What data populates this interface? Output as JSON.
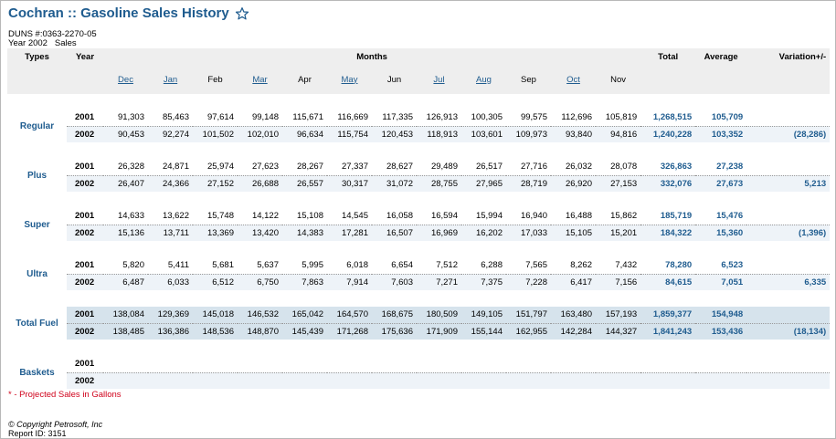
{
  "page": {
    "title": "Cochran :: Gasoline Sales History",
    "duns": "DUNS #:0363-2270-05",
    "year_line": "Year 2002   Sales"
  },
  "table": {
    "headers": {
      "types": "Types",
      "year": "Year",
      "months": "Months",
      "total": "Total",
      "average": "Average",
      "variation": "Variation+/-"
    },
    "months": [
      {
        "label": "Dec",
        "link": true
      },
      {
        "label": "Jan",
        "link": true
      },
      {
        "label": "Feb",
        "link": false
      },
      {
        "label": "Mar",
        "link": true
      },
      {
        "label": "Apr",
        "link": false
      },
      {
        "label": "May",
        "link": true
      },
      {
        "label": "Jun",
        "link": false
      },
      {
        "label": "Jul",
        "link": true
      },
      {
        "label": "Aug",
        "link": true
      },
      {
        "label": "Sep",
        "link": false
      },
      {
        "label": "Oct",
        "link": true
      },
      {
        "label": "Nov",
        "link": false
      }
    ],
    "groups": [
      {
        "type": "Regular",
        "rows": [
          {
            "year": "2001",
            "values": [
              "91,303",
              "85,463",
              "97,614",
              "99,148",
              "115,671",
              "116,669",
              "117,335",
              "126,913",
              "100,305",
              "99,575",
              "112,696",
              "105,819"
            ],
            "total": "1,268,515",
            "average": "105,709",
            "variation": ""
          },
          {
            "year": "2002",
            "values": [
              "90,453",
              "92,274",
              "101,502",
              "102,010",
              "96,634",
              "115,754",
              "120,453",
              "118,913",
              "103,601",
              "109,973",
              "93,840",
              "94,816"
            ],
            "total": "1,240,228",
            "average": "103,352",
            "variation": "(28,286)"
          }
        ]
      },
      {
        "type": "Plus",
        "rows": [
          {
            "year": "2001",
            "values": [
              "26,328",
              "24,871",
              "25,974",
              "27,623",
              "28,267",
              "27,337",
              "28,627",
              "29,489",
              "26,517",
              "27,716",
              "26,032",
              "28,078"
            ],
            "total": "326,863",
            "average": "27,238",
            "variation": ""
          },
          {
            "year": "2002",
            "values": [
              "26,407",
              "24,366",
              "27,152",
              "26,688",
              "26,557",
              "30,317",
              "31,072",
              "28,755",
              "27,965",
              "28,719",
              "26,920",
              "27,153"
            ],
            "total": "332,076",
            "average": "27,673",
            "variation": "5,213"
          }
        ]
      },
      {
        "type": "Super",
        "rows": [
          {
            "year": "2001",
            "values": [
              "14,633",
              "13,622",
              "15,748",
              "14,122",
              "15,108",
              "14,545",
              "16,058",
              "16,594",
              "15,994",
              "16,940",
              "16,488",
              "15,862"
            ],
            "total": "185,719",
            "average": "15,476",
            "variation": ""
          },
          {
            "year": "2002",
            "values": [
              "15,136",
              "13,711",
              "13,369",
              "13,420",
              "14,383",
              "17,281",
              "16,507",
              "16,969",
              "16,202",
              "17,033",
              "15,105",
              "15,201"
            ],
            "total": "184,322",
            "average": "15,360",
            "variation": "(1,396)"
          }
        ]
      },
      {
        "type": "Ultra",
        "rows": [
          {
            "year": "2001",
            "values": [
              "5,820",
              "5,411",
              "5,681",
              "5,637",
              "5,995",
              "6,018",
              "6,654",
              "7,512",
              "6,288",
              "7,565",
              "8,262",
              "7,432"
            ],
            "total": "78,280",
            "average": "6,523",
            "variation": ""
          },
          {
            "year": "2002",
            "values": [
              "6,487",
              "6,033",
              "6,512",
              "6,750",
              "7,863",
              "7,914",
              "7,603",
              "7,271",
              "7,375",
              "7,228",
              "6,417",
              "7,156"
            ],
            "total": "84,615",
            "average": "7,051",
            "variation": "6,335"
          }
        ]
      },
      {
        "type": "Total Fuel",
        "fuel": true,
        "rows": [
          {
            "year": "2001",
            "values": [
              "138,084",
              "129,369",
              "145,018",
              "146,532",
              "165,042",
              "164,570",
              "168,675",
              "180,509",
              "149,105",
              "151,797",
              "163,480",
              "157,193"
            ],
            "total": "1,859,377",
            "average": "154,948",
            "variation": ""
          },
          {
            "year": "2002",
            "values": [
              "138,485",
              "136,386",
              "148,536",
              "148,870",
              "145,439",
              "171,268",
              "175,636",
              "171,909",
              "155,144",
              "162,955",
              "142,284",
              "144,327"
            ],
            "total": "1,841,243",
            "average": "153,436",
            "variation": "(18,134)"
          }
        ]
      },
      {
        "type": "Baskets",
        "rows": [
          {
            "year": "2001",
            "values": [
              "",
              "",
              "",
              "",
              "",
              "",
              "",
              "",
              "",
              "",
              "",
              ""
            ],
            "total": "",
            "average": "",
            "variation": ""
          },
          {
            "year": "2002",
            "values": [
              "",
              "",
              "",
              "",
              "",
              "",
              "",
              "",
              "",
              "",
              "",
              ""
            ],
            "total": "",
            "average": "",
            "variation": ""
          }
        ]
      }
    ]
  },
  "footer": {
    "note": "* - Projected Sales in Gallons",
    "copyright": "© Copyright Petrosoft, Inc",
    "report_id": "Report ID: 3151"
  },
  "colors": {
    "title": "#1f5c8f",
    "header_bg": "#eeeeee",
    "alt_row_bg": "#eef3f8",
    "fuel_bg": "#d6e3ec",
    "note_red": "#d0021b"
  }
}
